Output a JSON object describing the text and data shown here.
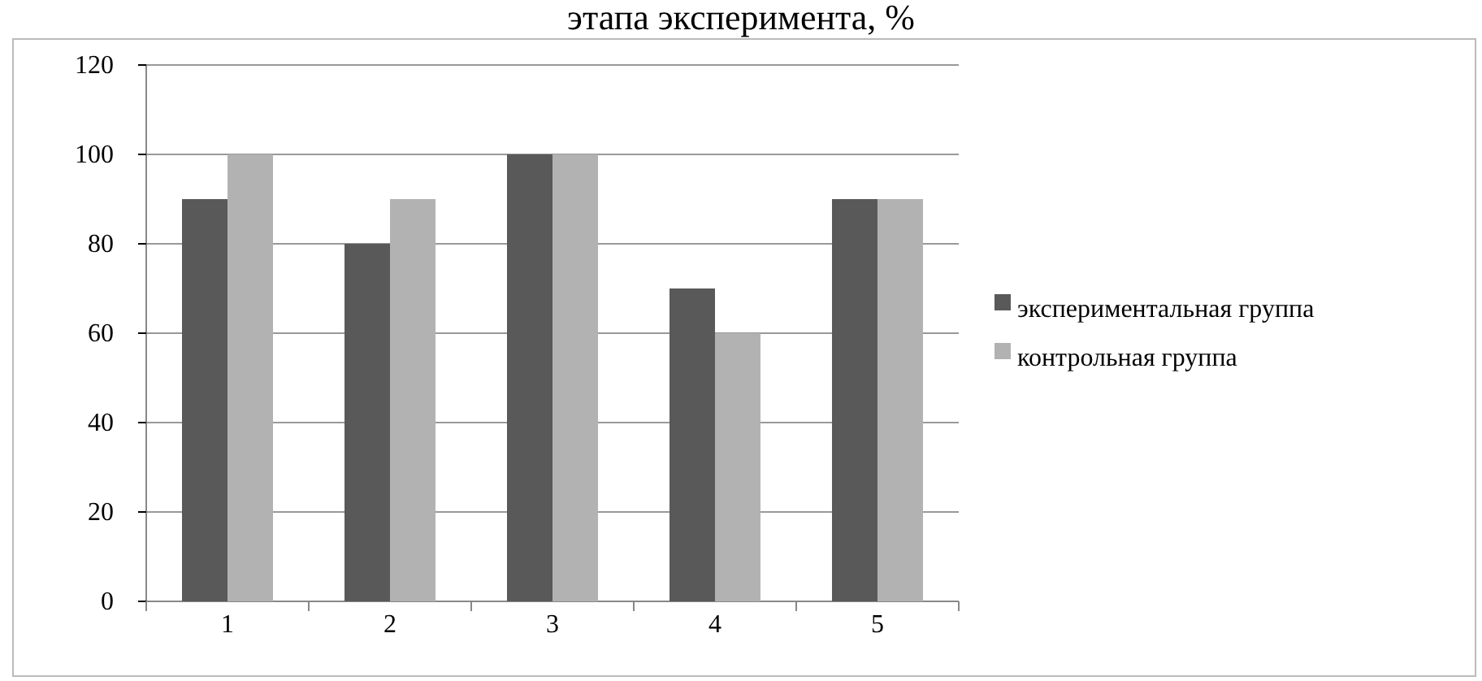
{
  "chart_data": {
    "type": "bar",
    "title": "этапа эксперимента, %",
    "categories": [
      "1",
      "2",
      "3",
      "4",
      "5"
    ],
    "series": [
      {
        "name": "экспериментальная группа",
        "color": "#595959",
        "values": [
          90,
          80,
          100,
          70,
          90
        ]
      },
      {
        "name": "контрольная группа",
        "color": "#b2b2b2",
        "values": [
          100,
          90,
          100,
          60,
          90
        ]
      }
    ],
    "ylim": [
      0,
      120
    ],
    "yticks": [
      0,
      20,
      40,
      60,
      80,
      100,
      120
    ],
    "grid": "y",
    "legend": "right"
  }
}
